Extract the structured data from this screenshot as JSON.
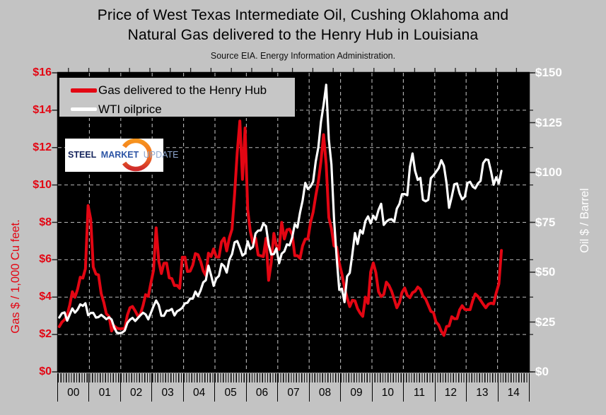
{
  "window": {
    "background": "#c3c3c3"
  },
  "header": {
    "title_line1": "Price of West Texas Intermediate Oil, Cushing Oklahoma and",
    "title_line2": "Natural Gas delivered to the Henry Hub in Louisiana",
    "source": "Source EIA. Energy Information Administration."
  },
  "legend": {
    "items": [
      {
        "label": "Gas delivered to the Henry Hub",
        "color": "#e30613"
      },
      {
        "label": "WTI oilprice",
        "color": "#ffffff"
      }
    ]
  },
  "logo": {
    "word1": "STEEL",
    "word2": "MARKET",
    "word3": "UPDATE"
  },
  "chart_data": {
    "type": "line",
    "title": "Price of West Texas Intermediate Oil, Cushing Oklahoma and Natural Gas delivered to the Henry Hub in Louisiana",
    "subtitle": "Source EIA. Energy Information Administration.",
    "plot_background": "#000000",
    "grid": {
      "shown": true,
      "style": "dashed",
      "color": "#b8b8b8"
    },
    "legend_position": "top-left",
    "x_axis": {
      "start_year": 2000,
      "interval": "monthly",
      "tick_labels": [
        "00",
        "01",
        "02",
        "03",
        "04",
        "05",
        "06",
        "07",
        "08",
        "09",
        "10",
        "11",
        "12",
        "13",
        "14"
      ]
    },
    "y_left": {
      "label": "Gas $ / 1,000 Cu feet.",
      "min": 0,
      "max": 16,
      "tick_step": 2,
      "tick_labels": [
        "$0",
        "$2",
        "$4",
        "$6",
        "$8",
        "$10",
        "$12",
        "$14",
        "$16"
      ],
      "color": "#e30613"
    },
    "y_right": {
      "label": "Oil $ / Barrel",
      "min": 0,
      "max": 150,
      "tick_step": 25,
      "tick_labels": [
        "$0",
        "$25",
        "$50",
        "$75",
        "$100",
        "$125",
        "$150"
      ],
      "color": "#ffffff"
    },
    "series": [
      {
        "name": "Gas delivered to the Henry Hub",
        "axis": "left",
        "color": "#e30613",
        "values": [
          2.42,
          2.66,
          2.79,
          3.04,
          3.59,
          4.29,
          3.99,
          4.43,
          5.06,
          5.02,
          5.52,
          8.9,
          8.17,
          5.61,
          5.23,
          5.19,
          4.19,
          3.72,
          3.11,
          2.97,
          2.19,
          2.46,
          2.34,
          2.3,
          2.32,
          2.32,
          3.03,
          3.43,
          3.5,
          3.26,
          2.99,
          3.09,
          3.55,
          4.13,
          4.04,
          4.74,
          5.43,
          7.71,
          5.93,
          5.26,
          5.81,
          5.82,
          5.03,
          4.99,
          4.62,
          4.63,
          4.47,
          6.13,
          6.14,
          5.37,
          5.39,
          5.71,
          6.33,
          6.27,
          5.93,
          5.41,
          5.15,
          6.35,
          6.17,
          6.58,
          6.15,
          6.14,
          6.96,
          7.16,
          6.47,
          7.18,
          7.63,
          9.53,
          11.75,
          13.42,
          10.3,
          13.05,
          8.69,
          7.54,
          6.89,
          7.16,
          6.25,
          6.21,
          6.17,
          7.14,
          4.9,
          5.85,
          7.41,
          6.73,
          6.55,
          8.0,
          7.11,
          7.6,
          7.64,
          7.35,
          6.22,
          6.22,
          6.08,
          6.74,
          7.1,
          7.11,
          7.99,
          8.54,
          9.41,
          10.18,
          11.27,
          12.69,
          11.09,
          8.26,
          7.67,
          6.74,
          6.68,
          5.82,
          5.24,
          4.51,
          3.96,
          3.49,
          3.83,
          3.8,
          3.38,
          3.14,
          2.97,
          4.0,
          3.66,
          5.34,
          5.83,
          5.32,
          4.29,
          4.03,
          4.14,
          4.8,
          4.63,
          4.32,
          3.89,
          3.43,
          3.71,
          4.25,
          4.49,
          4.09,
          3.97,
          4.24,
          4.31,
          4.54,
          4.42,
          4.06,
          3.9,
          3.57,
          3.24,
          3.17,
          2.67,
          2.51,
          2.17,
          1.95,
          2.43,
          2.46,
          2.95,
          2.84,
          2.85,
          3.32,
          3.54,
          3.34,
          3.33,
          3.33,
          3.81,
          4.17,
          4.04,
          3.83,
          3.62,
          3.43,
          3.62,
          3.68,
          3.64,
          4.24,
          4.71,
          6.5
        ]
      },
      {
        "name": "WTI oilprice",
        "axis": "right",
        "color": "#ffffff",
        "values": [
          27.26,
          29.37,
          29.84,
          25.72,
          28.79,
          31.82,
          29.7,
          31.26,
          33.88,
          33.11,
          34.42,
          28.44,
          29.59,
          29.61,
          27.25,
          27.49,
          28.63,
          27.6,
          26.43,
          27.37,
          26.2,
          22.17,
          19.64,
          19.39,
          19.72,
          20.72,
          24.53,
          26.18,
          27.04,
          25.52,
          26.97,
          28.39,
          29.66,
          28.84,
          26.35,
          29.46,
          32.95,
          35.83,
          33.51,
          28.17,
          28.11,
          30.66,
          30.76,
          31.57,
          28.31,
          30.34,
          31.11,
          32.13,
          34.31,
          34.69,
          36.74,
          36.75,
          40.28,
          38.03,
          40.78,
          44.9,
          45.94,
          53.28,
          48.47,
          43.15,
          46.84,
          48.15,
          54.19,
          52.98,
          49.83,
          56.35,
          59.0,
          64.99,
          65.59,
          62.26,
          58.32,
          59.41,
          65.49,
          61.63,
          62.69,
          69.44,
          70.84,
          70.95,
          74.41,
          73.04,
          63.8,
          58.89,
          59.08,
          61.96,
          54.51,
          59.28,
          60.44,
          63.98,
          63.46,
          67.49,
          74.12,
          72.36,
          79.92,
          85.8,
          94.77,
          91.69,
          92.97,
          95.39,
          105.45,
          112.58,
          125.4,
          133.88,
          144.0,
          116.67,
          104.11,
          76.61,
          57.31,
          41.12,
          41.71,
          35.0,
          47.94,
          49.65,
          59.03,
          69.64,
          64.15,
          71.05,
          69.41,
          75.72,
          77.99,
          74.47,
          78.33,
          76.39,
          81.2,
          84.29,
          73.74,
          75.34,
          76.32,
          76.6,
          75.24,
          81.89,
          84.25,
          89.15,
          89.17,
          88.58,
          102.86,
          109.53,
          100.9,
          96.26,
          97.3,
          86.33,
          85.52,
          86.32,
          97.16,
          98.56,
          100.27,
          102.2,
          106.16,
          103.32,
          94.66,
          82.3,
          87.9,
          94.13,
          94.51,
          89.49,
          86.53,
          87.86,
          94.76,
          95.31,
          92.94,
          92.02,
          94.51,
          95.77,
          104.67,
          106.57,
          106.29,
          100.54,
          93.86,
          97.63,
          94.62,
          100.82
        ]
      }
    ]
  }
}
